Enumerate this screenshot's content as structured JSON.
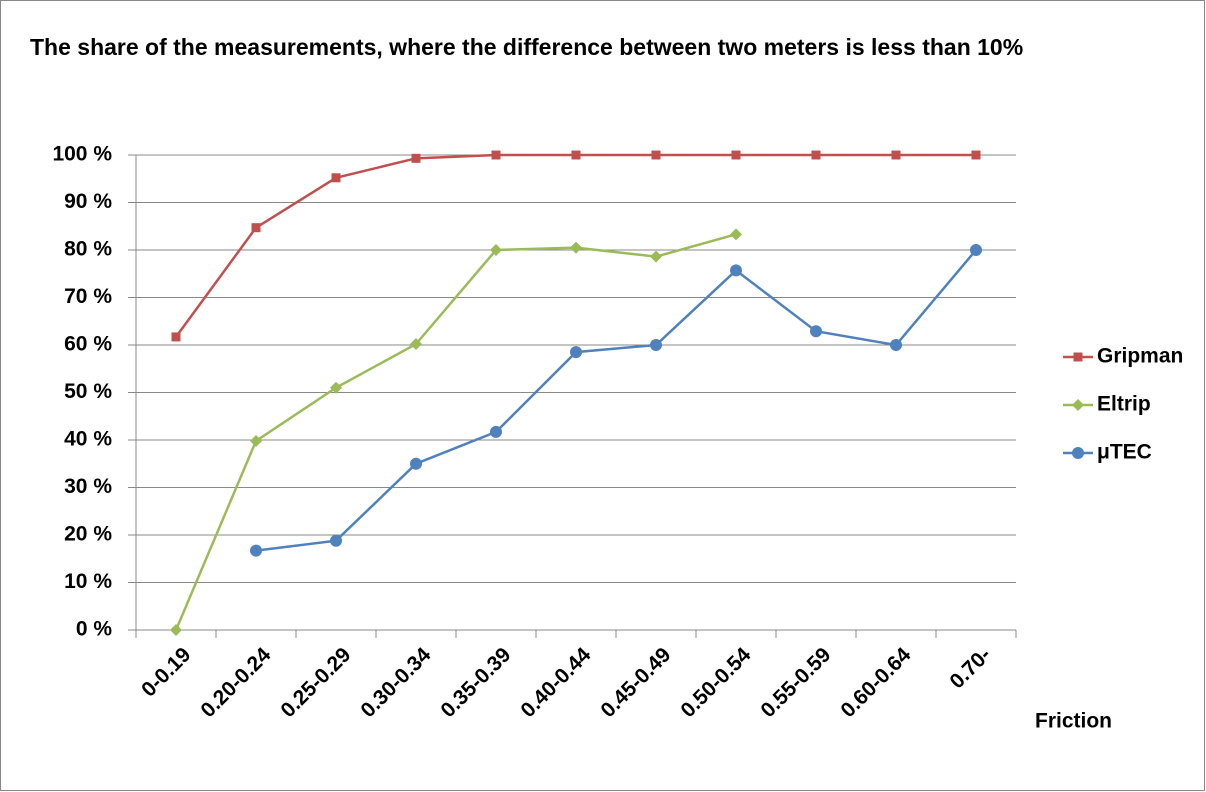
{
  "chart_data": {
    "type": "line",
    "title": "The share of the measurements, where the difference between two meters is less than 10%",
    "x_label": "Friction",
    "categories": [
      "0-0.19",
      "0.20-0.24",
      "0.25-0.29",
      "0.30-0.34",
      "0.35-0.39",
      "0.40-0.44",
      "0.45-0.49",
      "0.50-0.54",
      "0.55-0.59",
      "0.60-0.64",
      "0.70-"
    ],
    "series": [
      {
        "name": "Gripman",
        "color": "#c0504d",
        "marker": "square",
        "values": [
          61.7,
          84.7,
          95.2,
          99.3,
          100,
          100,
          100,
          100,
          100,
          100,
          100
        ]
      },
      {
        "name": "Eltrip",
        "color": "#9bbb59",
        "marker": "diamond",
        "values": [
          0,
          39.8,
          51,
          60.2,
          80,
          80.5,
          78.6,
          83.3,
          null,
          null,
          null
        ]
      },
      {
        "name": "μTEC",
        "color": "#4f81bd",
        "marker": "circle",
        "values": [
          null,
          16.7,
          18.8,
          35,
          41.7,
          58.5,
          60,
          75.7,
          62.9,
          60,
          80
        ]
      }
    ],
    "ylim": [
      0,
      100
    ],
    "yticks": [
      {
        "value": 0,
        "label": "0 %"
      },
      {
        "value": 10,
        "label": "10 %"
      },
      {
        "value": 20,
        "label": "20 %"
      },
      {
        "value": 30,
        "label": "30 %"
      },
      {
        "value": 40,
        "label": "40 %"
      },
      {
        "value": 50,
        "label": "50 %"
      },
      {
        "value": 60,
        "label": "60 %"
      },
      {
        "value": 70,
        "label": "70 %"
      },
      {
        "value": 80,
        "label": "80 %"
      },
      {
        "value": 90,
        "label": "90 %"
      },
      {
        "value": 100,
        "label": "100 %"
      }
    ],
    "grid": true,
    "legend": "right"
  }
}
